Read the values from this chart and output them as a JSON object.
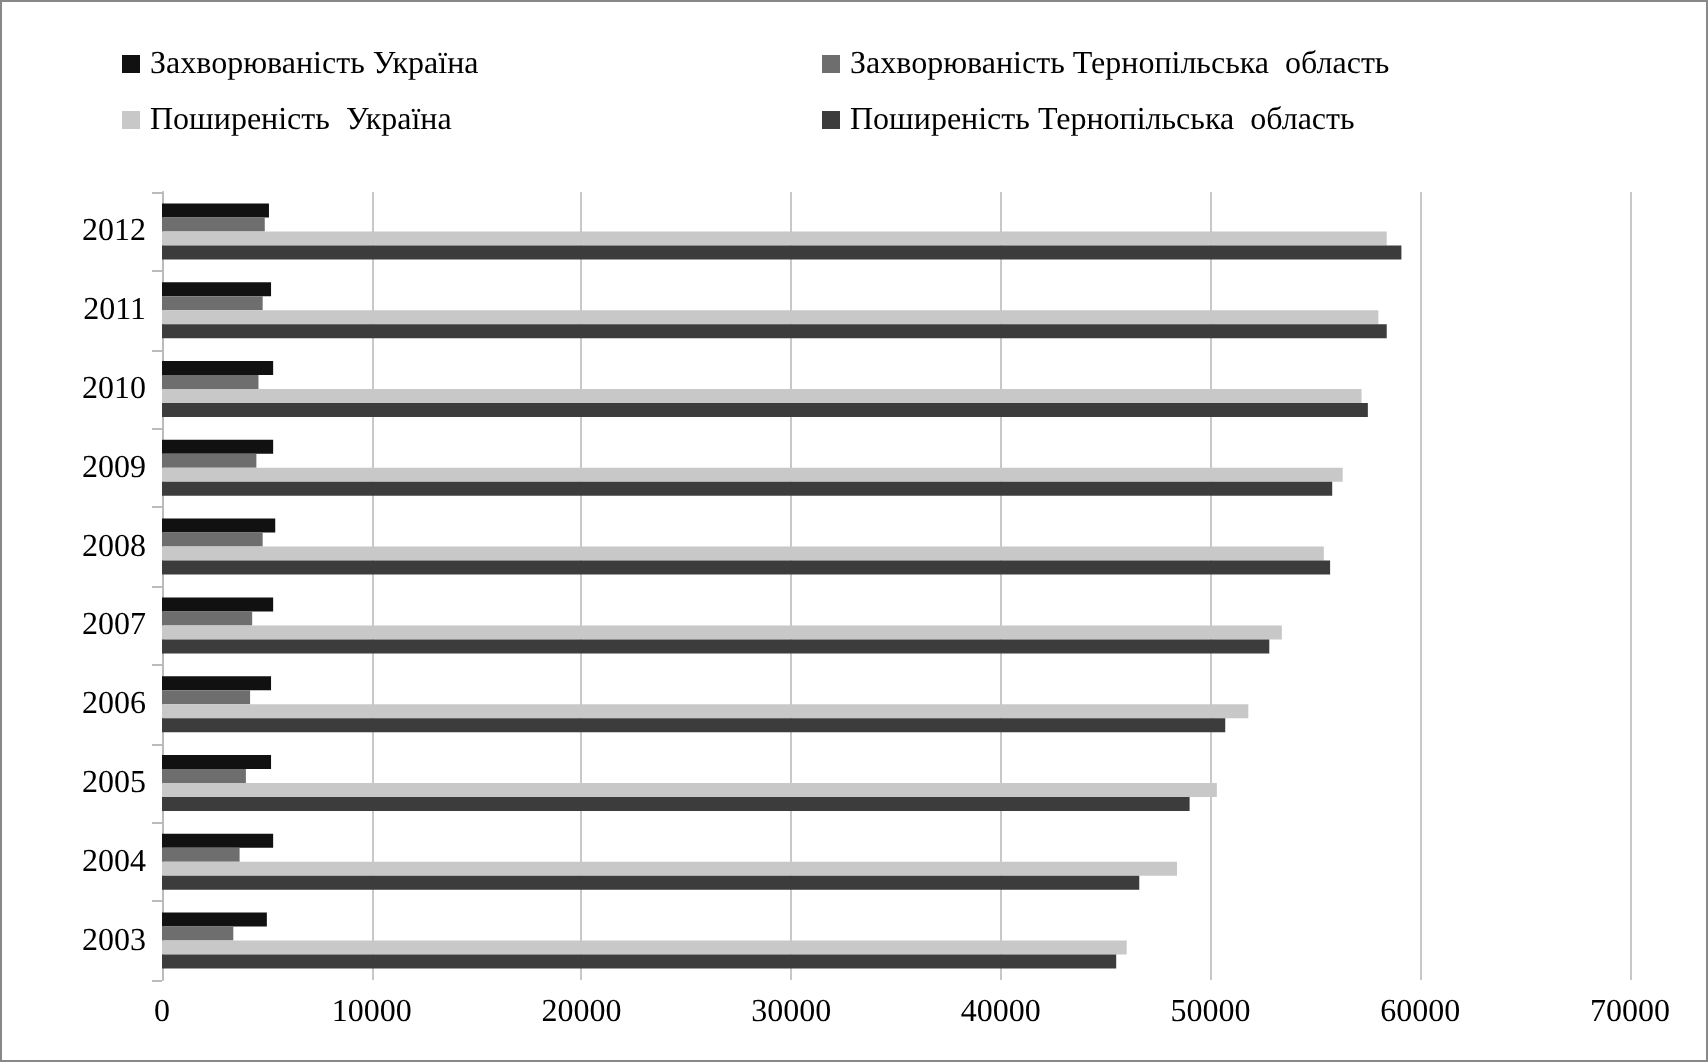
{
  "chart_data": {
    "type": "bar",
    "orientation": "horizontal",
    "categories": [
      "2012",
      "2011",
      "2010",
      "2009",
      "2008",
      "2007",
      "2006",
      "2005",
      "2004",
      "2003"
    ],
    "series": [
      {
        "name": "Захворюваність Україна",
        "color": "#111111",
        "values": [
          5100,
          5200,
          5300,
          5300,
          5400,
          5300,
          5200,
          5200,
          5300,
          5000
        ]
      },
      {
        "name": "Захворюваність Тернопільська  область",
        "color": "#6e6e6e",
        "values": [
          4900,
          4800,
          4600,
          4500,
          4800,
          4300,
          4200,
          4000,
          3700,
          3400
        ]
      },
      {
        "name": "Поширеність  Україна",
        "color": "#c8c8c8",
        "values": [
          58400,
          58000,
          57200,
          56300,
          55400,
          53400,
          51800,
          50300,
          48400,
          46000
        ]
      },
      {
        "name": "Поширеність Тернопільська  область",
        "color": "#3c3c3c",
        "values": [
          59100,
          58400,
          57500,
          55800,
          55700,
          52800,
          50700,
          49000,
          46600,
          45500
        ]
      }
    ],
    "xlim": [
      0,
      70000
    ],
    "xticks": [
      0,
      10000,
      20000,
      30000,
      40000,
      50000,
      60000,
      70000
    ],
    "grid": "x",
    "legend": "top"
  }
}
